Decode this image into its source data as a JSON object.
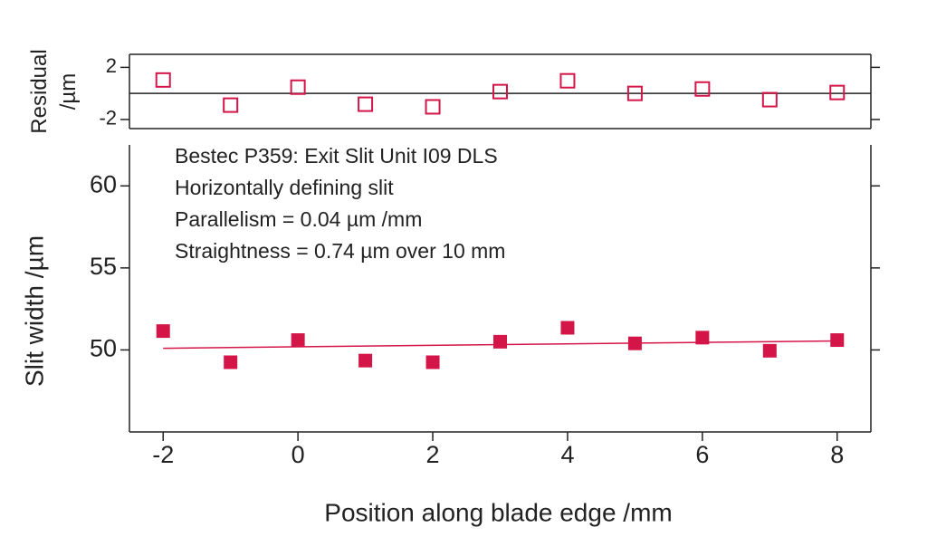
{
  "chart_data": [
    {
      "type": "scatter",
      "ylabel": [
        "Residual",
        "/µm"
      ],
      "xlim": [
        -2.5,
        8.5
      ],
      "ylim": [
        -2.7,
        3
      ],
      "yticks": [
        2,
        -2
      ],
      "reference_line": 0,
      "series": [
        {
          "type": "scatter",
          "marker": "hollow-square",
          "color": "#d41548",
          "x": [
            -2,
            -1,
            0,
            1,
            2,
            3,
            4,
            5,
            6,
            7,
            8
          ],
          "values": [
            1.03,
            -0.9,
            0.48,
            -0.83,
            -1.03,
            0.14,
            0.97,
            0,
            0.34,
            -0.48,
            0.07
          ]
        }
      ]
    },
    {
      "type": "scatter",
      "ylabel": "Slit width /µm",
      "xlabel": "Position along blade edge /mm",
      "annotations": [
        "Bestec P359: Exit Slit Unit I09 DLS",
        "Horizontally defining slit",
        "Parallelism = 0.04 µm /mm",
        "Straightness = 0.74 µm over 10 mm"
      ],
      "xlim": [
        -2.5,
        8.5
      ],
      "xticks": [
        -2,
        0,
        2,
        4,
        6,
        8
      ],
      "ylim": [
        45,
        62.5
      ],
      "yticks": [
        60,
        55,
        50
      ],
      "series": [
        {
          "type": "scatter",
          "marker": "filled-square",
          "color": "#d41548",
          "x": [
            -2,
            -1,
            0,
            1,
            2,
            3,
            4,
            5,
            6,
            7,
            8
          ],
          "values": [
            51.15,
            49.25,
            50.6,
            49.35,
            49.25,
            50.5,
            51.35,
            50.4,
            50.75,
            49.95,
            50.6
          ]
        },
        {
          "type": "line",
          "color": "#d41548",
          "x": [
            -2,
            8
          ],
          "values": [
            50.1,
            50.55
          ]
        }
      ]
    }
  ]
}
